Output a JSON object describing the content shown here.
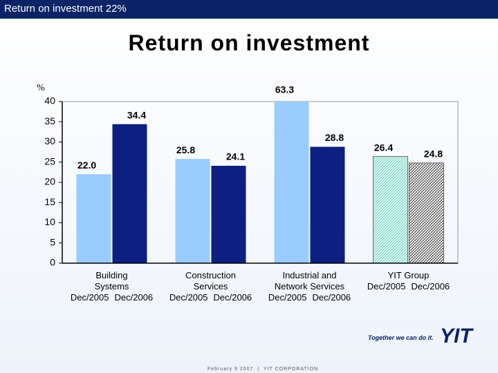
{
  "header": {
    "text": "Return on investment 22%"
  },
  "chart_data": {
    "type": "bar",
    "title": "Return on investment",
    "ylabel": "%",
    "categories": [
      "Building Systems",
      "Construction Services",
      "Industrial and Network Services",
      "YIT Group"
    ],
    "series": [
      {
        "name": "Dec/2005",
        "color": "#99ccff",
        "values": [
          22.0,
          25.8,
          63.3,
          26.4
        ],
        "value_labels": [
          "22.0",
          "25.8",
          "63.3",
          "26.4"
        ]
      },
      {
        "name": "Dec/2006",
        "color": "#0d1f80",
        "values": [
          34.4,
          24.1,
          28.8,
          24.8
        ],
        "value_labels": [
          "34.4",
          "24.1",
          "28.8",
          "24.8"
        ]
      }
    ],
    "hatch": [
      false,
      false,
      false,
      true
    ],
    "ylim": [
      0,
      40
    ],
    "yticks": [
      0,
      5,
      10,
      15,
      20,
      25,
      30,
      35,
      40
    ]
  },
  "footer": {
    "date": "February 9 2007",
    "company": "YIT CORPORATION",
    "slogan": "Together we can do it.",
    "logo": "YIT"
  }
}
